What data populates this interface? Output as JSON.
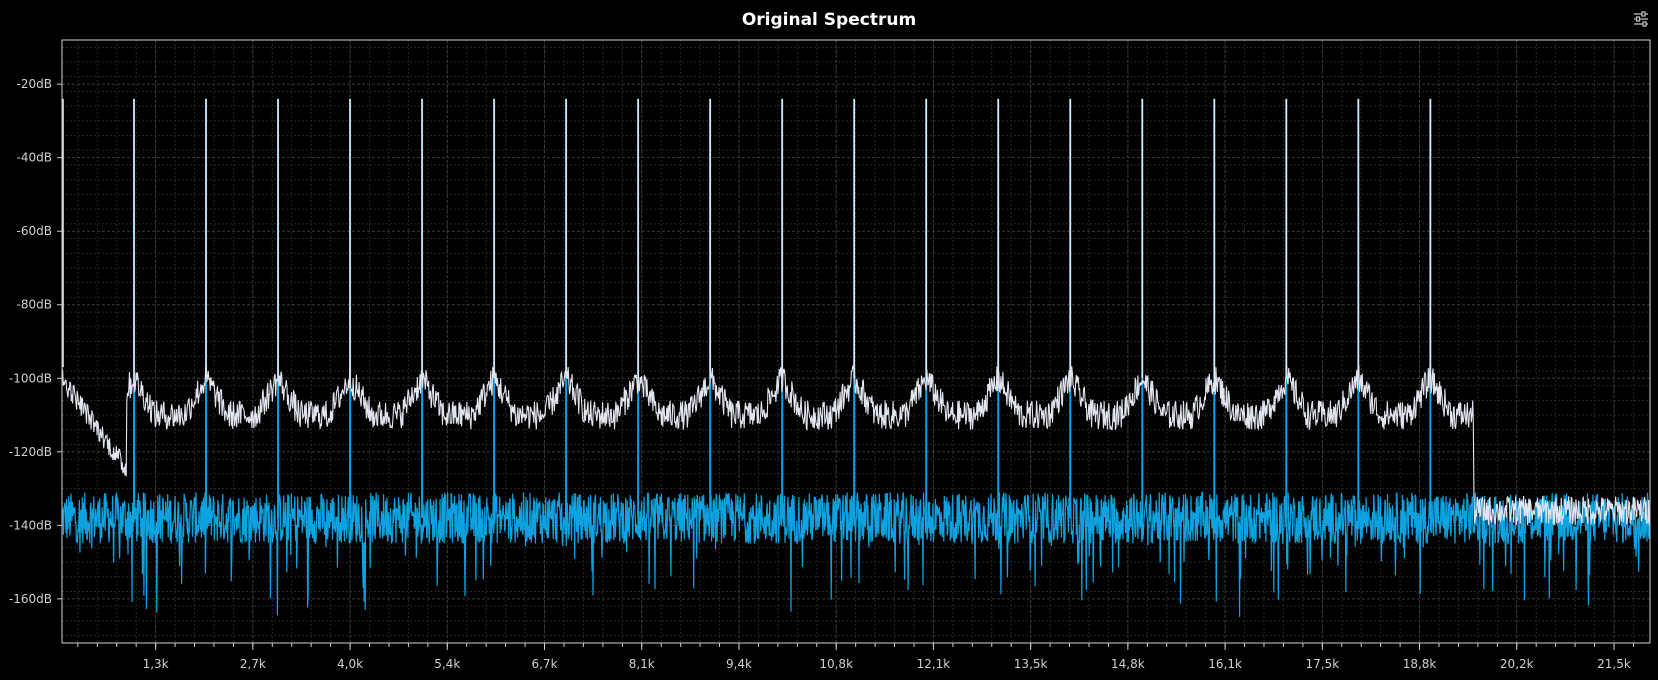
{
  "chart_data": {
    "type": "line",
    "title": "Original Spectrum",
    "xlabel": "",
    "ylabel": "",
    "xlim": [
      0,
      22050
    ],
    "ylim": [
      -172,
      -8
    ],
    "x_tick_labels": [
      "1,3k",
      "2,7k",
      "4,0k",
      "5,4k",
      "6,7k",
      "8,1k",
      "9,4k",
      "10,8k",
      "12,1k",
      "13,5k",
      "14,8k",
      "16,1k",
      "17,5k",
      "18,8k",
      "20,2k",
      "21,5k"
    ],
    "x_tick_values": [
      1300,
      2650,
      4000,
      5350,
      6700,
      8050,
      9400,
      10750,
      12100,
      13450,
      14800,
      16150,
      17500,
      18850,
      20200,
      21550
    ],
    "y_tick_labels": [
      "-20dB",
      "-40dB",
      "-60dB",
      "-80dB",
      "-100dB",
      "-120dB",
      "-140dB",
      "-160dB"
    ],
    "y_tick_values": [
      -20,
      -40,
      -60,
      -80,
      -100,
      -120,
      -140,
      -160
    ],
    "grid": true,
    "series": [
      {
        "color": "#e2e4ee",
        "peak_frequencies": [
          1000,
          2000,
          3000,
          4000,
          5000,
          6000,
          7000,
          8000,
          9000,
          10000,
          11000,
          12000,
          13000,
          14000,
          15000,
          16000,
          17000,
          18000,
          19000
        ],
        "peak_level_db": -24,
        "skirt_level_db": -100,
        "valley_level_db": -110,
        "cutoff_frequency": 19600,
        "floor_above_cutoff_db": -136
      },
      {
        "color": "#0ea3e0",
        "peak_frequencies": [
          1000,
          2000,
          3000,
          4000,
          5000,
          6000,
          7000,
          8000,
          9000,
          10000,
          11000,
          12000,
          13000,
          14000,
          15000,
          16000,
          17000,
          18000,
          19000
        ],
        "peak_level_db": -24,
        "noise_floor_db": -138
      }
    ]
  },
  "icons": {
    "settings": "sliders-icon"
  }
}
